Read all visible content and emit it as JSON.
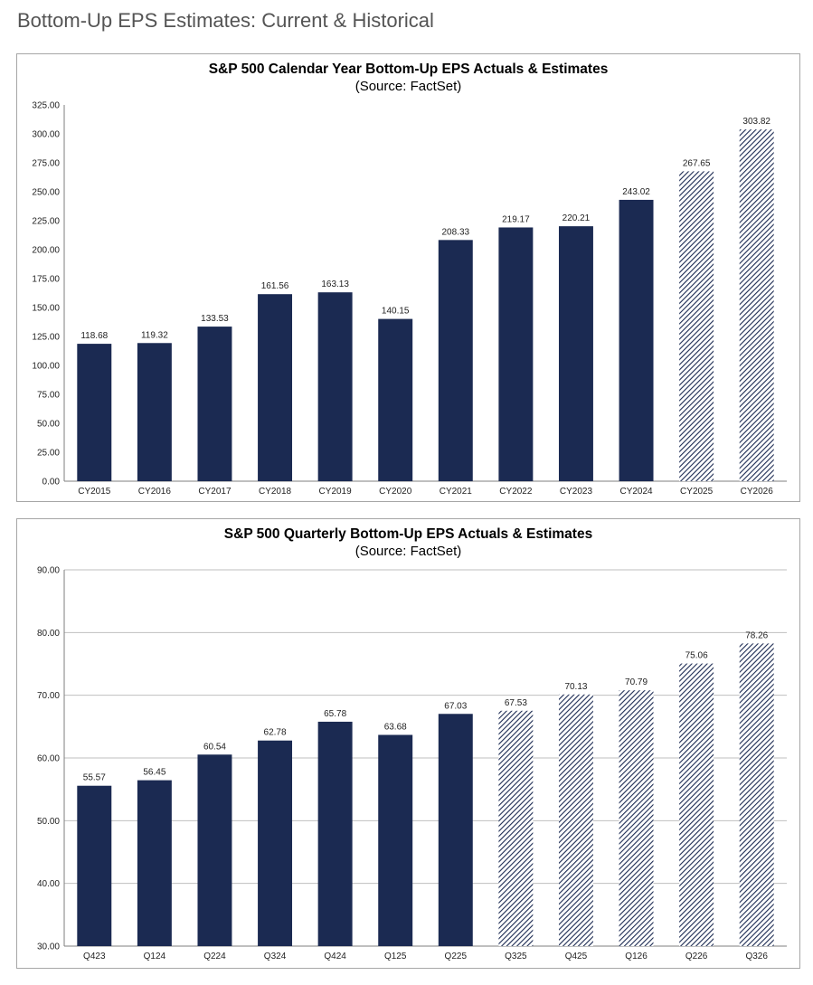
{
  "page": {
    "title": "Bottom-Up EPS Estimates: Current & Historical"
  },
  "colors": {
    "actual": "#1b2a52",
    "estimate_hatch": "#1b2a52",
    "gridline": "#bfbfbf",
    "axis": "#7f7f7f"
  },
  "chart_data": [
    {
      "type": "bar",
      "title": "S&P 500 Calendar Year Bottom-Up EPS Actuals & Estimates",
      "subtitle": "(Source: FactSet)",
      "xlabel": "",
      "ylabel": "",
      "ylim": [
        0,
        325
      ],
      "ytick_step": 25,
      "ytick_labels": [
        "0.00",
        "25.00",
        "50.00",
        "75.00",
        "100.00",
        "125.00",
        "150.00",
        "175.00",
        "200.00",
        "225.00",
        "250.00",
        "275.00",
        "300.00",
        "325.00"
      ],
      "gridlines": false,
      "categories": [
        "CY2015",
        "CY2016",
        "CY2017",
        "CY2018",
        "CY2019",
        "CY2020",
        "CY2021",
        "CY2022",
        "CY2023",
        "CY2024",
        "CY2025",
        "CY2026"
      ],
      "values": [
        118.68,
        119.32,
        133.53,
        161.56,
        163.13,
        140.15,
        208.33,
        219.17,
        220.21,
        243.02,
        267.65,
        303.82
      ],
      "value_labels": [
        "118.68",
        "119.32",
        "133.53",
        "161.56",
        "163.13",
        "140.15",
        "208.33",
        "219.17",
        "220.21",
        "243.02",
        "267.65",
        "303.82"
      ],
      "is_estimate": [
        false,
        false,
        false,
        false,
        false,
        false,
        false,
        false,
        false,
        false,
        true,
        true
      ]
    },
    {
      "type": "bar",
      "title": "S&P 500 Quarterly Bottom-Up EPS Actuals & Estimates",
      "subtitle": "(Source: FactSet)",
      "xlabel": "",
      "ylabel": "",
      "ylim": [
        30,
        90
      ],
      "ytick_step": 10,
      "ytick_labels": [
        "30.00",
        "40.00",
        "50.00",
        "60.00",
        "70.00",
        "80.00",
        "90.00"
      ],
      "gridlines": true,
      "categories": [
        "Q423",
        "Q124",
        "Q224",
        "Q324",
        "Q424",
        "Q125",
        "Q225",
        "Q325",
        "Q425",
        "Q126",
        "Q226",
        "Q326"
      ],
      "values": [
        55.57,
        56.45,
        60.54,
        62.78,
        65.78,
        63.68,
        67.03,
        67.53,
        70.13,
        70.79,
        75.06,
        78.26
      ],
      "value_labels": [
        "55.57",
        "56.45",
        "60.54",
        "62.78",
        "65.78",
        "63.68",
        "67.03",
        "67.53",
        "70.13",
        "70.79",
        "75.06",
        "78.26"
      ],
      "is_estimate": [
        false,
        false,
        false,
        false,
        false,
        false,
        false,
        true,
        true,
        true,
        true,
        true
      ]
    }
  ]
}
